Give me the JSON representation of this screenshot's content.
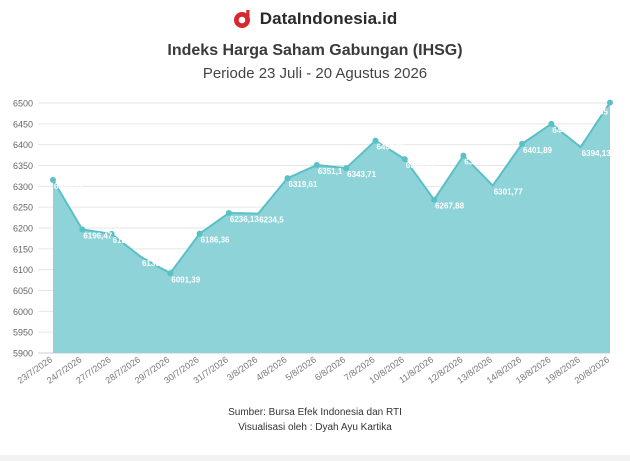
{
  "brand": {
    "name": "DataIndonesia.id",
    "logo_icon": "data-indonesia-logo-icon",
    "logo_color": "#d9272e"
  },
  "header": {
    "title": "Indeks Harga Saham Gabungan (IHSG)",
    "subtitle": "Periode 23 Juli - 20 Agustus 2026"
  },
  "footer": {
    "source": "Sumber: Bursa Efek Indonesia dan RTI",
    "credit": "Visualisasi oleh : Dyah Ayu Kartika"
  },
  "colors": {
    "area_fill": "#8dd3d8",
    "line": "#5bbfc6",
    "marker": "#5bbfc6",
    "label_text": "#ffffff"
  },
  "chart_data": {
    "type": "area",
    "categories": [
      "23/7/2026",
      "24/7/2026",
      "27/7/2026",
      "28/7/2026",
      "29/7/2026",
      "30/7/2026",
      "31/7/2026",
      "3/8/2026",
      "4/8/2026",
      "5/8/2026",
      "6/8/2026",
      "7/8/2026",
      "10/8/2026",
      "11/8/2026",
      "12/8/2026",
      "13/8/2026",
      "14/8/2026",
      "18/8/2026",
      "19/8/2026",
      "20/8/2026"
    ],
    "values": [
      6315.31,
      6196.47,
      6185.78,
      6130.59,
      6091.39,
      6186.36,
      6236.13,
      6234.5,
      6319.61,
      6351.1,
      6343.71,
      6409.65,
      6365.37,
      6267.88,
      6373.65,
      6301.77,
      6401.89,
      6449.83,
      6394.13,
      6501.05
    ],
    "value_labels": [
      "6315,31",
      "6196,47",
      "6185,78",
      "6130,59",
      "6091,39",
      "6186,36",
      "6236,13",
      "6234,5",
      "6319,61",
      "6351,1",
      "6343,71",
      "6409,65",
      "6365,37",
      "6267,88",
      "6373,65",
      "6301,77",
      "6401,89",
      "6449,83",
      "6394,13",
      "6501,05"
    ],
    "marked_points": [
      0,
      1,
      2,
      4,
      5,
      6,
      8,
      9,
      10,
      11,
      12,
      13,
      14,
      16,
      17,
      19
    ],
    "y_ticks": [
      "5900",
      "5950",
      "6000",
      "6050",
      "6100",
      "6150",
      "6200",
      "6250",
      "6300",
      "6350",
      "6400",
      "6450",
      "6500"
    ],
    "ylim": [
      5900,
      6500
    ],
    "grid": true,
    "legend": "none"
  }
}
